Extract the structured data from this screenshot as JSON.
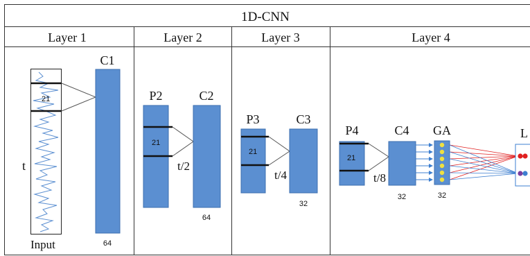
{
  "title": "1D-CNN",
  "layers": [
    "Layer 1",
    "Layer 2",
    "Layer 3",
    "Layer 4"
  ],
  "layer1": {
    "input_label": "Input",
    "t_label": "t",
    "kernel": "21",
    "conv_label": "C1",
    "conv_size": "64"
  },
  "layer2": {
    "pool_label": "P2",
    "conv_label": "C2",
    "kernel": "21",
    "t_label": "t/2",
    "conv_size": "64"
  },
  "layer3": {
    "pool_label": "P3",
    "conv_label": "C3",
    "kernel": "21",
    "t_label": "t/4",
    "conv_size": "32"
  },
  "layer4": {
    "pool_label": "P4",
    "conv_label": "C4",
    "ga_label": "GA",
    "kernel": "21",
    "t_label": "t/8",
    "conv_size": "32",
    "ga_size": "32",
    "output_label": "L"
  },
  "colors": {
    "block": "#5b8fd1",
    "block_edge": "#3d6fb0",
    "ga_node": "#f0e040",
    "out_red": "#e02020",
    "out_blue": "#3d7fd0",
    "out_purple": "#7a3fa0"
  }
}
